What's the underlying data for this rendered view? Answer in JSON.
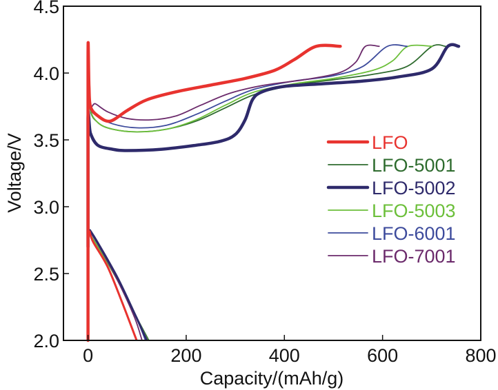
{
  "chart_data": {
    "type": "line",
    "title": "",
    "xlabel": "Capacity/(mAh/g)",
    "ylabel": "Voltage/V",
    "xlim": [
      -50,
      800
    ],
    "ylim": [
      2.0,
      4.5
    ],
    "xticks": [
      0,
      200,
      400,
      600,
      800
    ],
    "xtick_labels": [
      "0",
      "200",
      "400",
      "600",
      "800"
    ],
    "yticks": [
      2.0,
      2.5,
      3.0,
      3.5,
      4.0,
      4.5
    ],
    "ytick_labels": [
      "2.0",
      "2.5",
      "3.0",
      "3.5",
      "4.0",
      "4.5"
    ],
    "grid": false,
    "legend_position": "right-middle",
    "series": [
      {
        "name": "LFO",
        "color": "#e8332f",
        "weight": "bold",
        "charge": [
          [
            0,
            2.0
          ],
          [
            0,
            4.12
          ],
          [
            2,
            3.9
          ],
          [
            5,
            3.75
          ],
          [
            20,
            3.68
          ],
          [
            45,
            3.64
          ],
          [
            80,
            3.72
          ],
          [
            120,
            3.8
          ],
          [
            180,
            3.86
          ],
          [
            250,
            3.91
          ],
          [
            320,
            3.96
          ],
          [
            380,
            4.02
          ],
          [
            420,
            4.1
          ],
          [
            465,
            4.2
          ],
          [
            514,
            4.2
          ]
        ],
        "discharge": [
          [
            3,
            2.82
          ],
          [
            10,
            2.74
          ],
          [
            40,
            2.55
          ],
          [
            70,
            2.28
          ],
          [
            99,
            2.0
          ]
        ]
      },
      {
        "name": "LFO-5001",
        "color": "#2e6b2e",
        "weight": "normal",
        "charge": [
          [
            0,
            2.7
          ],
          [
            0,
            4.1
          ],
          [
            4,
            3.74
          ],
          [
            20,
            3.63
          ],
          [
            50,
            3.58
          ],
          [
            100,
            3.56
          ],
          [
            160,
            3.58
          ],
          [
            220,
            3.64
          ],
          [
            280,
            3.74
          ],
          [
            340,
            3.84
          ],
          [
            420,
            3.91
          ],
          [
            500,
            3.95
          ],
          [
            580,
            3.99
          ],
          [
            650,
            4.05
          ],
          [
            701,
            4.2
          ],
          [
            728,
            4.2
          ]
        ],
        "discharge": [
          [
            3,
            2.8
          ],
          [
            20,
            2.7
          ],
          [
            60,
            2.45
          ],
          [
            95,
            2.2
          ],
          [
            124,
            2.0
          ]
        ]
      },
      {
        "name": "LFO-5002",
        "color": "#2e2a6b",
        "weight": "bold",
        "charge": [
          [
            0,
            2.7
          ],
          [
            0,
            3.66
          ],
          [
            5,
            3.55
          ],
          [
            20,
            3.46
          ],
          [
            50,
            3.43
          ],
          [
            80,
            3.42
          ],
          [
            150,
            3.43
          ],
          [
            220,
            3.46
          ],
          [
            270,
            3.49
          ],
          [
            300,
            3.54
          ],
          [
            320,
            3.65
          ],
          [
            335,
            3.8
          ],
          [
            355,
            3.86
          ],
          [
            400,
            3.9
          ],
          [
            480,
            3.92
          ],
          [
            560,
            3.94
          ],
          [
            630,
            3.97
          ],
          [
            700,
            4.03
          ],
          [
            733,
            4.2
          ],
          [
            755,
            4.2
          ]
        ],
        "discharge": [
          [
            3,
            2.83
          ],
          [
            20,
            2.73
          ],
          [
            60,
            2.47
          ],
          [
            95,
            2.2
          ],
          [
            120,
            2.0
          ]
        ]
      },
      {
        "name": "LFO-5003",
        "color": "#6cbf3a",
        "weight": "normal",
        "charge": [
          [
            0,
            2.7
          ],
          [
            0,
            4.1
          ],
          [
            4,
            3.75
          ],
          [
            20,
            3.63
          ],
          [
            50,
            3.58
          ],
          [
            100,
            3.56
          ],
          [
            160,
            3.58
          ],
          [
            220,
            3.65
          ],
          [
            280,
            3.76
          ],
          [
            340,
            3.86
          ],
          [
            420,
            3.92
          ],
          [
            500,
            3.96
          ],
          [
            580,
            4.02
          ],
          [
            620,
            4.09
          ],
          [
            652,
            4.2
          ],
          [
            701,
            4.2
          ]
        ],
        "discharge": [
          [
            3,
            2.8
          ],
          [
            20,
            2.7
          ],
          [
            60,
            2.45
          ],
          [
            95,
            2.2
          ],
          [
            122,
            2.0
          ]
        ]
      },
      {
        "name": "LFO-6001",
        "color": "#3d4b9c",
        "weight": "normal",
        "charge": [
          [
            0,
            2.7
          ],
          [
            0,
            4.14
          ],
          [
            4,
            3.76
          ],
          [
            20,
            3.68
          ],
          [
            50,
            3.62
          ],
          [
            100,
            3.59
          ],
          [
            160,
            3.61
          ],
          [
            220,
            3.69
          ],
          [
            280,
            3.79
          ],
          [
            340,
            3.88
          ],
          [
            420,
            3.94
          ],
          [
            500,
            3.98
          ],
          [
            560,
            4.05
          ],
          [
            610,
            4.2
          ],
          [
            650,
            4.2
          ]
        ],
        "discharge": [
          [
            3,
            2.82
          ],
          [
            20,
            2.72
          ],
          [
            60,
            2.46
          ],
          [
            95,
            2.2
          ],
          [
            117,
            2.0
          ]
        ]
      },
      {
        "name": "LFO-7001",
        "color": "#6b2a6b",
        "weight": "normal",
        "charge": [
          [
            0,
            2.7
          ],
          [
            0,
            4.16
          ],
          [
            4,
            3.77
          ],
          [
            15,
            3.77
          ],
          [
            40,
            3.71
          ],
          [
            80,
            3.66
          ],
          [
            130,
            3.65
          ],
          [
            180,
            3.68
          ],
          [
            230,
            3.76
          ],
          [
            290,
            3.85
          ],
          [
            360,
            3.91
          ],
          [
            440,
            3.95
          ],
          [
            510,
            4.0
          ],
          [
            545,
            4.08
          ],
          [
            565,
            4.2
          ],
          [
            593,
            4.2
          ]
        ],
        "discharge": [
          [
            3,
            2.82
          ],
          [
            20,
            2.72
          ],
          [
            60,
            2.45
          ],
          [
            95,
            2.17
          ],
          [
            110,
            2.0
          ]
        ]
      }
    ]
  }
}
